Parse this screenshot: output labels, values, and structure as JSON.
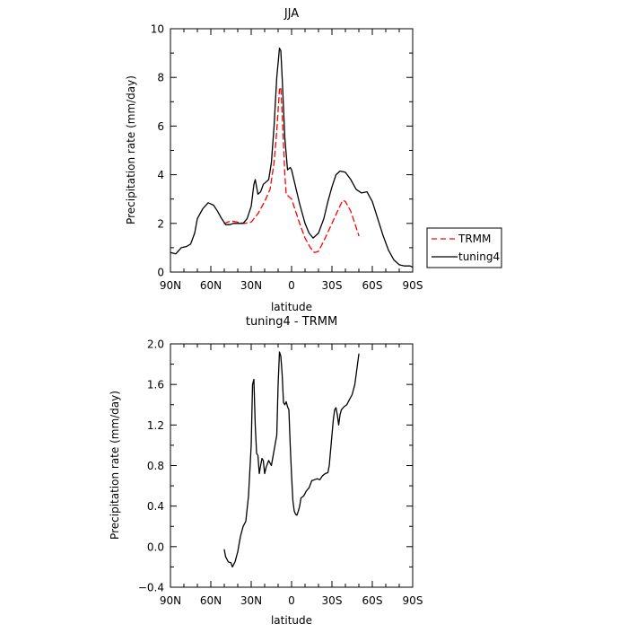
{
  "chart_data": [
    {
      "type": "line",
      "title": "JJA",
      "xlabel": "latitude",
      "ylabel": "Precipitation rate (mm/day)",
      "xlim": [
        90,
        -90
      ],
      "ylim": [
        0,
        10
      ],
      "xticks": [
        {
          "value": 90,
          "label": "90N"
        },
        {
          "value": 60,
          "label": "60N"
        },
        {
          "value": 30,
          "label": "30N"
        },
        {
          "value": 0,
          "label": "0"
        },
        {
          "value": -30,
          "label": "30S"
        },
        {
          "value": -60,
          "label": "60S"
        },
        {
          "value": -90,
          "label": "90S"
        }
      ],
      "yticks": [
        {
          "value": 0,
          "label": "0"
        },
        {
          "value": 2,
          "label": "2"
        },
        {
          "value": 4,
          "label": "4"
        },
        {
          "value": 6,
          "label": "6"
        },
        {
          "value": 8,
          "label": "8"
        },
        {
          "value": 10,
          "label": "10"
        }
      ],
      "legend": "right",
      "series": [
        {
          "name": "TRMM",
          "color": "#ff0000",
          "dash": "dashed",
          "points": [
            [
              50,
              2.0
            ],
            [
              45,
              2.1
            ],
            [
              40,
              2.05
            ],
            [
              35,
              2.0
            ],
            [
              30,
              2.05
            ],
            [
              25,
              2.4
            ],
            [
              20,
              2.9
            ],
            [
              16,
              3.4
            ],
            [
              13,
              4.5
            ],
            [
              11,
              5.8
            ],
            [
              9,
              7.5
            ],
            [
              8,
              7.6
            ],
            [
              7,
              6.5
            ],
            [
              5,
              4.0
            ],
            [
              4,
              3.2
            ],
            [
              2,
              3.1
            ],
            [
              0,
              3.0
            ],
            [
              -3,
              2.5
            ],
            [
              -6,
              2.0
            ],
            [
              -10,
              1.4
            ],
            [
              -14,
              1.0
            ],
            [
              -17,
              0.8
            ],
            [
              -20,
              0.85
            ],
            [
              -25,
              1.4
            ],
            [
              -30,
              2.0
            ],
            [
              -35,
              2.6
            ],
            [
              -38,
              2.95
            ],
            [
              -40,
              2.9
            ],
            [
              -44,
              2.5
            ],
            [
              -47,
              2.0
            ],
            [
              -50,
              1.5
            ]
          ]
        },
        {
          "name": "tuning4",
          "color": "#000000",
          "dash": "solid",
          "points": [
            [
              90,
              0.8
            ],
            [
              86,
              0.75
            ],
            [
              82,
              1.0
            ],
            [
              78,
              1.05
            ],
            [
              75,
              1.15
            ],
            [
              72,
              1.6
            ],
            [
              70,
              2.2
            ],
            [
              66,
              2.6
            ],
            [
              62,
              2.85
            ],
            [
              58,
              2.75
            ],
            [
              55,
              2.5
            ],
            [
              52,
              2.2
            ],
            [
              49,
              1.95
            ],
            [
              46,
              1.95
            ],
            [
              43,
              2.0
            ],
            [
              40,
              2.0
            ],
            [
              36,
              2.0
            ],
            [
              33,
              2.2
            ],
            [
              30,
              2.7
            ],
            [
              28,
              3.6
            ],
            [
              27,
              3.8
            ],
            [
              25,
              3.2
            ],
            [
              23,
              3.3
            ],
            [
              21,
              3.6
            ],
            [
              19,
              3.7
            ],
            [
              17,
              3.8
            ],
            [
              15,
              4.5
            ],
            [
              13,
              6.0
            ],
            [
              11,
              8.0
            ],
            [
              9,
              9.2
            ],
            [
              8,
              9.1
            ],
            [
              7,
              8.0
            ],
            [
              5,
              5.5
            ],
            [
              3,
              4.2
            ],
            [
              1,
              4.3
            ],
            [
              0,
              4.2
            ],
            [
              -3,
              3.5
            ],
            [
              -6,
              2.8
            ],
            [
              -10,
              2.0
            ],
            [
              -13,
              1.6
            ],
            [
              -16,
              1.4
            ],
            [
              -20,
              1.6
            ],
            [
              -24,
              2.2
            ],
            [
              -27,
              2.9
            ],
            [
              -30,
              3.5
            ],
            [
              -33,
              4.0
            ],
            [
              -36,
              4.15
            ],
            [
              -40,
              4.1
            ],
            [
              -44,
              3.8
            ],
            [
              -48,
              3.4
            ],
            [
              -52,
              3.25
            ],
            [
              -56,
              3.3
            ],
            [
              -60,
              2.9
            ],
            [
              -64,
              2.2
            ],
            [
              -68,
              1.5
            ],
            [
              -72,
              0.9
            ],
            [
              -76,
              0.5
            ],
            [
              -80,
              0.3
            ],
            [
              -84,
              0.25
            ],
            [
              -88,
              0.25
            ],
            [
              -90,
              0.2
            ]
          ]
        }
      ]
    },
    {
      "type": "line",
      "title": "tuning4 - TRMM",
      "xlabel": "latitude",
      "ylabel": "Precipitation rate (mm/day)",
      "xlim": [
        90,
        -90
      ],
      "ylim": [
        -0.4,
        2.0
      ],
      "xticks": [
        {
          "value": 90,
          "label": "90N"
        },
        {
          "value": 60,
          "label": "60N"
        },
        {
          "value": 30,
          "label": "30N"
        },
        {
          "value": 0,
          "label": "0"
        },
        {
          "value": -30,
          "label": "30S"
        },
        {
          "value": -60,
          "label": "60S"
        },
        {
          "value": -90,
          "label": "90S"
        }
      ],
      "yticks": [
        {
          "value": -0.4,
          "label": "−0.4"
        },
        {
          "value": 0,
          "label": "0.0"
        },
        {
          "value": 0.4,
          "label": "0.4"
        },
        {
          "value": 0.8,
          "label": "0.8"
        },
        {
          "value": 1.2,
          "label": "1.2"
        },
        {
          "value": 1.6,
          "label": "1.6"
        },
        {
          "value": 2.0,
          "label": "2.0"
        }
      ],
      "series": [
        {
          "color": "#000000",
          "dash": "solid",
          "points": [
            [
              50,
              -0.03
            ],
            [
              49,
              -0.1
            ],
            [
              47,
              -0.15
            ],
            [
              45,
              -0.16
            ],
            [
              44,
              -0.2
            ],
            [
              42,
              -0.15
            ],
            [
              41,
              -0.1
            ],
            [
              40,
              -0.05
            ],
            [
              38,
              0.1
            ],
            [
              36,
              0.2
            ],
            [
              34,
              0.25
            ],
            [
              32,
              0.5
            ],
            [
              30,
              1.0
            ],
            [
              29,
              1.6
            ],
            [
              28,
              1.65
            ],
            [
              27,
              1.2
            ],
            [
              26,
              0.92
            ],
            [
              25,
              0.9
            ],
            [
              24,
              0.72
            ],
            [
              23,
              0.8
            ],
            [
              22,
              0.87
            ],
            [
              21,
              0.85
            ],
            [
              20,
              0.72
            ],
            [
              19,
              0.78
            ],
            [
              17,
              0.85
            ],
            [
              15,
              0.8
            ],
            [
              13,
              0.95
            ],
            [
              11,
              1.1
            ],
            [
              10,
              1.6
            ],
            [
              9,
              1.92
            ],
            [
              8,
              1.88
            ],
            [
              7,
              1.7
            ],
            [
              6,
              1.42
            ],
            [
              5,
              1.4
            ],
            [
              4,
              1.43
            ],
            [
              3,
              1.38
            ],
            [
              2,
              1.35
            ],
            [
              1,
              1.0
            ],
            [
              0,
              0.7
            ],
            [
              -1,
              0.45
            ],
            [
              -2,
              0.35
            ],
            [
              -3,
              0.32
            ],
            [
              -4,
              0.31
            ],
            [
              -5,
              0.35
            ],
            [
              -6,
              0.4
            ],
            [
              -7,
              0.48
            ],
            [
              -9,
              0.5
            ],
            [
              -11,
              0.55
            ],
            [
              -13,
              0.58
            ],
            [
              -15,
              0.65
            ],
            [
              -17,
              0.66
            ],
            [
              -19,
              0.67
            ],
            [
              -21,
              0.66
            ],
            [
              -23,
              0.7
            ],
            [
              -25,
              0.72
            ],
            [
              -27,
              0.73
            ],
            [
              -28,
              0.8
            ],
            [
              -29,
              0.95
            ],
            [
              -30,
              1.1
            ],
            [
              -31,
              1.25
            ],
            [
              -32,
              1.35
            ],
            [
              -33,
              1.37
            ],
            [
              -34,
              1.3
            ],
            [
              -35,
              1.2
            ],
            [
              -36,
              1.3
            ],
            [
              -37,
              1.35
            ],
            [
              -39,
              1.38
            ],
            [
              -41,
              1.4
            ],
            [
              -43,
              1.45
            ],
            [
              -45,
              1.5
            ],
            [
              -47,
              1.6
            ],
            [
              -48,
              1.7
            ],
            [
              -49,
              1.8
            ],
            [
              -50,
              1.9
            ]
          ]
        }
      ]
    }
  ]
}
